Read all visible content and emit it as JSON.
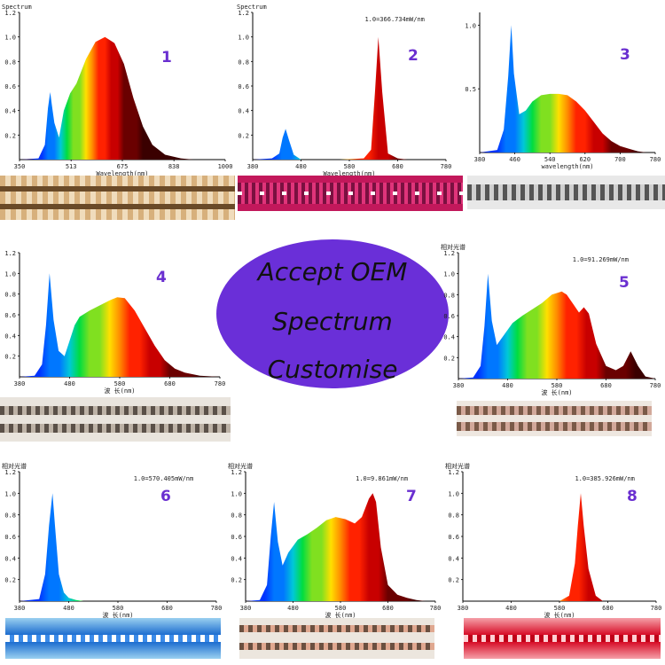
{
  "oem": {
    "line1": "Accept OEM",
    "line2": "Spectrum",
    "line3": "Customise"
  },
  "panels": [
    {
      "number": "1",
      "top_label": "Spectrum",
      "ratio": "",
      "yticks": [
        "0.2",
        "0.4",
        "0.6",
        "0.8",
        "1.0",
        "1.2"
      ],
      "xticks": [
        "350",
        "513",
        "675",
        "838",
        "1000"
      ],
      "xlabel": "Wavelength(nm)"
    },
    {
      "number": "2",
      "top_label": "Spectrum",
      "ratio": "1.0=366.734mW/nm",
      "yticks": [
        "0.2",
        "0.4",
        "0.6",
        "0.8",
        "1.0",
        "1.2"
      ],
      "xticks": [
        "380",
        "480",
        "580",
        "680",
        "780"
      ],
      "xlabel": "Wavelength(nm)"
    },
    {
      "number": "3",
      "top_label": "",
      "ratio": "",
      "yticks": [
        "0.5",
        "1.0"
      ],
      "xticks": [
        "380",
        "460",
        "540",
        "620",
        "700",
        "780"
      ],
      "xlabel": "wavelength(nm)"
    },
    {
      "number": "4",
      "top_label": "",
      "ratio": "",
      "yticks": [
        "0.2",
        "0.4",
        "0.6",
        "0.8",
        "1.0",
        "1.2"
      ],
      "xticks": [
        "380",
        "480",
        "580",
        "680",
        "780"
      ],
      "xlabel": "波 长(nm)"
    },
    {
      "number": "5",
      "top_label": "相对光谱",
      "ratio": "1.0=91.269mW/nm",
      "yticks": [
        "0.2",
        "0.4",
        "0.6",
        "0.8",
        "1.0",
        "1.2"
      ],
      "xticks": [
        "380",
        "480",
        "580",
        "680",
        "780"
      ],
      "xlabel": "波 长(nm)"
    },
    {
      "number": "6",
      "top_label": "相对光谱",
      "ratio": "1.0=570.405mW/nm",
      "yticks": [
        "0.2",
        "0.4",
        "0.6",
        "0.8",
        "1.0",
        "1.2"
      ],
      "xticks": [
        "380",
        "480",
        "580",
        "680",
        "780"
      ],
      "xlabel": "波 长(nm)"
    },
    {
      "number": "7",
      "top_label": "相对光谱",
      "ratio": "1.0=9.861mW/nm",
      "yticks": [
        "0.2",
        "0.4",
        "0.6",
        "0.8",
        "1.0",
        "1.2"
      ],
      "xticks": [
        "380",
        "480",
        "580",
        "680",
        "780"
      ],
      "xlabel": "波 长(nm)"
    },
    {
      "number": "8",
      "top_label": "相对光谱",
      "ratio": "1.0=385.926mW/nm",
      "yticks": [
        "0.2",
        "0.4",
        "0.6",
        "0.8",
        "1.0",
        "1.2"
      ],
      "xticks": [
        "380",
        "480",
        "580",
        "680",
        "780"
      ],
      "xlabel": "波 长(nm)"
    }
  ],
  "chart_data": [
    {
      "type": "area",
      "xlim": [
        350,
        1000
      ],
      "ylim": [
        0,
        1.2
      ],
      "x": [
        350,
        410,
        430,
        440,
        447,
        452,
        460,
        475,
        490,
        510,
        530,
        560,
        590,
        620,
        650,
        680,
        710,
        740,
        770,
        810,
        860,
        900
      ],
      "series": [
        {
          "values": [
            0,
            0.01,
            0.12,
            0.42,
            0.55,
            0.45,
            0.3,
            0.18,
            0.4,
            0.54,
            0.62,
            0.82,
            0.96,
            1.0,
            0.95,
            0.78,
            0.5,
            0.27,
            0.12,
            0.04,
            0.01,
            0
          ]
        }
      ]
    },
    {
      "type": "area",
      "xlim": [
        380,
        780
      ],
      "ylim": [
        0,
        1.2
      ],
      "x": [
        380,
        420,
        435,
        442,
        448,
        455,
        465,
        480,
        560,
        610,
        625,
        633,
        640,
        648,
        660,
        680,
        700,
        780
      ],
      "series": [
        {
          "values": [
            0,
            0.01,
            0.05,
            0.18,
            0.25,
            0.16,
            0.04,
            0,
            0,
            0.01,
            0.08,
            0.55,
            1.0,
            0.55,
            0.05,
            0.01,
            0,
            0
          ]
        }
      ]
    },
    {
      "type": "area",
      "xlim": [
        380,
        780
      ],
      "ylim": [
        0,
        1.1
      ],
      "x": [
        380,
        420,
        435,
        445,
        452,
        458,
        470,
        485,
        500,
        520,
        540,
        560,
        580,
        600,
        620,
        640,
        660,
        680,
        700,
        720,
        740,
        760,
        780
      ],
      "series": [
        {
          "values": [
            0,
            0.02,
            0.18,
            0.6,
            1.0,
            0.62,
            0.3,
            0.33,
            0.4,
            0.45,
            0.46,
            0.46,
            0.45,
            0.4,
            0.33,
            0.24,
            0.15,
            0.09,
            0.05,
            0.03,
            0.01,
            0,
            0
          ]
        }
      ]
    },
    {
      "type": "area",
      "xlim": [
        380,
        780
      ],
      "ylim": [
        0,
        1.2
      ],
      "x": [
        380,
        410,
        425,
        433,
        440,
        448,
        458,
        470,
        480,
        490,
        500,
        520,
        540,
        560,
        575,
        590,
        610,
        630,
        650,
        670,
        690,
        710,
        740,
        780
      ],
      "series": [
        {
          "values": [
            0,
            0.01,
            0.12,
            0.5,
            1.0,
            0.55,
            0.25,
            0.2,
            0.35,
            0.5,
            0.58,
            0.64,
            0.69,
            0.74,
            0.77,
            0.76,
            0.64,
            0.47,
            0.3,
            0.16,
            0.08,
            0.04,
            0.01,
            0
          ]
        }
      ]
    },
    {
      "type": "area",
      "xlim": [
        380,
        780
      ],
      "ylim": [
        0,
        1.2
      ],
      "x": [
        380,
        410,
        425,
        433,
        440,
        448,
        458,
        470,
        490,
        510,
        530,
        550,
        570,
        590,
        600,
        615,
        625,
        635,
        645,
        660,
        680,
        700,
        715,
        730,
        745,
        760,
        780
      ],
      "series": [
        {
          "values": [
            0,
            0.01,
            0.12,
            0.5,
            1.0,
            0.55,
            0.32,
            0.4,
            0.53,
            0.6,
            0.66,
            0.72,
            0.8,
            0.83,
            0.8,
            0.7,
            0.63,
            0.68,
            0.62,
            0.33,
            0.12,
            0.08,
            0.12,
            0.26,
            0.12,
            0.02,
            0
          ]
        }
      ]
    },
    {
      "type": "area",
      "xlim": [
        380,
        780
      ],
      "ylim": [
        0,
        1.2
      ],
      "x": [
        380,
        420,
        432,
        440,
        447,
        452,
        460,
        470,
        480,
        495,
        510,
        780
      ],
      "series": [
        {
          "values": [
            0,
            0.02,
            0.25,
            0.7,
            1.0,
            0.7,
            0.25,
            0.08,
            0.03,
            0.01,
            0,
            0
          ]
        }
      ]
    },
    {
      "type": "area",
      "xlim": [
        380,
        780
      ],
      "ylim": [
        0,
        1.2
      ],
      "x": [
        380,
        410,
        425,
        433,
        440,
        448,
        458,
        470,
        490,
        510,
        530,
        550,
        570,
        590,
        610,
        625,
        640,
        648,
        655,
        665,
        680,
        700,
        720,
        740,
        760,
        780
      ],
      "series": [
        {
          "values": [
            0,
            0.01,
            0.15,
            0.6,
            0.92,
            0.55,
            0.33,
            0.45,
            0.57,
            0.62,
            0.68,
            0.75,
            0.78,
            0.76,
            0.72,
            0.78,
            0.95,
            1.0,
            0.92,
            0.5,
            0.15,
            0.06,
            0.03,
            0.01,
            0,
            0
          ]
        }
      ]
    },
    {
      "type": "area",
      "xlim": [
        380,
        780
      ],
      "ylim": [
        0,
        1.2
      ],
      "x": [
        380,
        580,
        600,
        612,
        618,
        624,
        630,
        640,
        655,
        670,
        780
      ],
      "series": [
        {
          "values": [
            0,
            0,
            0.05,
            0.35,
            0.7,
            1.0,
            0.7,
            0.3,
            0.05,
            0,
            0
          ]
        }
      ]
    }
  ]
}
